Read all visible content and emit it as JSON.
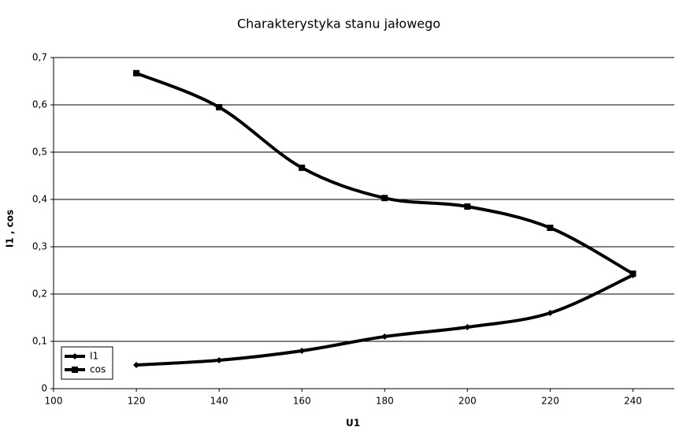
{
  "chart_data": {
    "type": "line",
    "title": "Charakterystyka stanu jałowego",
    "x_label": "U1",
    "y_label": "I1 , cos",
    "x": [
      120,
      140,
      160,
      180,
      200,
      220,
      240
    ],
    "series": [
      {
        "name": "I1",
        "color": "#000000",
        "marker": "diamond",
        "values": [
          0.05,
          0.06,
          0.08,
          0.11,
          0.13,
          0.16,
          0.24
        ]
      },
      {
        "name": "cos",
        "color": "#000000",
        "marker": "square",
        "values": [
          0.667,
          0.595,
          0.467,
          0.403,
          0.385,
          0.34,
          0.243
        ]
      }
    ],
    "xlim": [
      100,
      250
    ],
    "xticks": [
      100,
      120,
      140,
      160,
      180,
      200,
      220,
      240
    ],
    "ylim": [
      0,
      0.7
    ],
    "yticks": [
      0,
      {
        "value": 0.1,
        "label": "0,1"
      },
      {
        "value": 0.2,
        "label": "0,2"
      },
      {
        "value": 0.3,
        "label": "0,3"
      },
      {
        "value": 0.4,
        "label": "0,4"
      },
      {
        "value": 0.5,
        "label": "0,5"
      },
      {
        "value": 0.6,
        "label": "0,6"
      },
      {
        "value": 0.7,
        "label": "0,7"
      }
    ],
    "grid": true,
    "legend": "lower left"
  }
}
